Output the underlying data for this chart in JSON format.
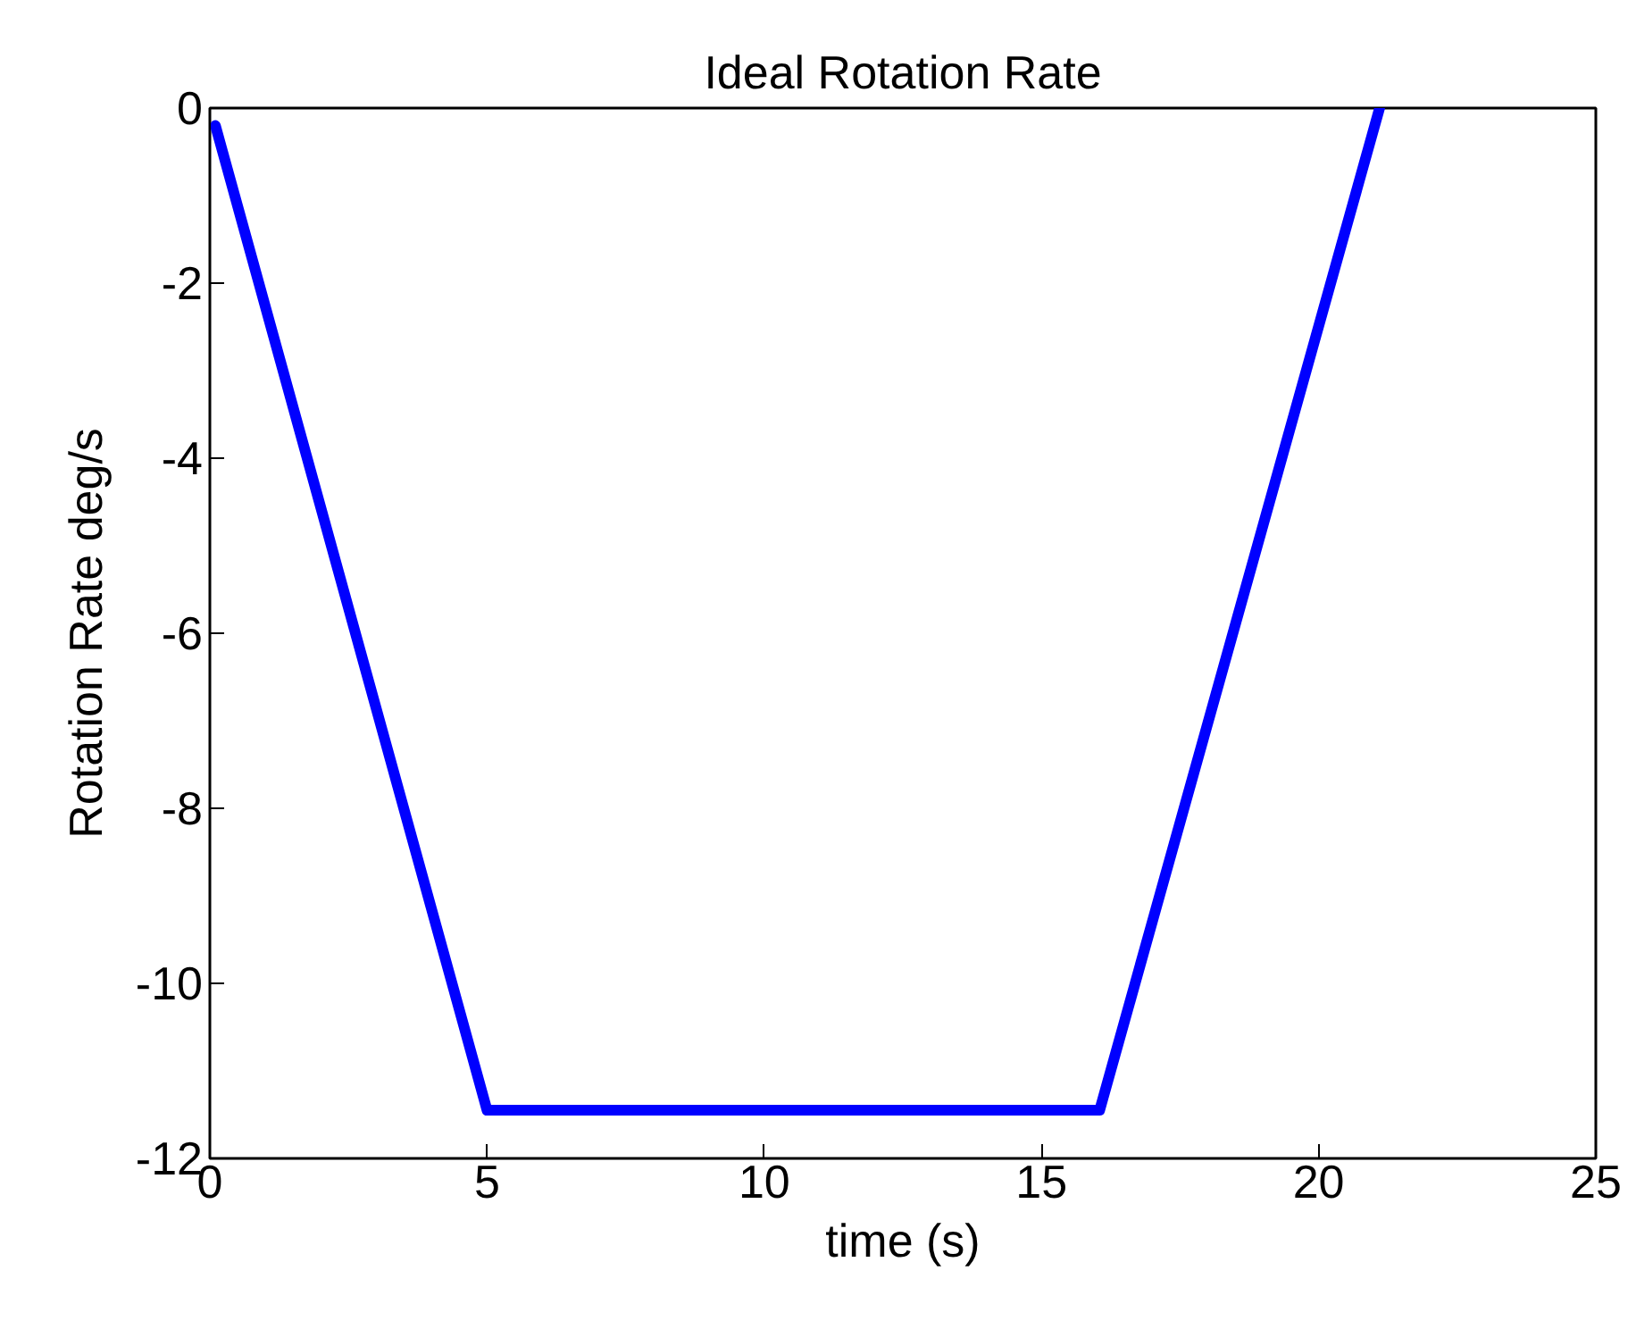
{
  "chart_data": {
    "type": "line",
    "title": "Ideal Rotation Rate",
    "xlabel": "time (s)",
    "ylabel": "Rotation Rate deg/s",
    "x": [
      0.1,
      5,
      16.05,
      21.1
    ],
    "series": [
      {
        "color": "#0000ff",
        "values": [
          -0.2,
          -11.45,
          -11.45,
          0
        ]
      }
    ],
    "xlim": [
      0,
      25
    ],
    "ylim": [
      -12,
      0
    ],
    "xticks": [
      0,
      5,
      10,
      15,
      20,
      25
    ],
    "yticks": [
      -12,
      -10,
      -8,
      -6,
      -4,
      -2,
      0
    ],
    "grid": false,
    "line_style": "solid",
    "marker": "none"
  }
}
